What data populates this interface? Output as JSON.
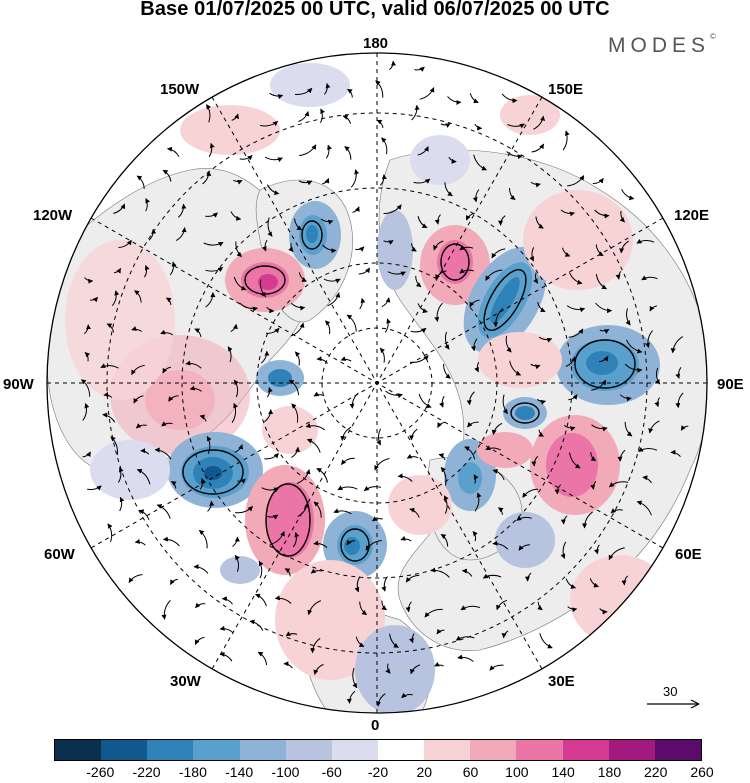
{
  "title": "Base 01/07/2025 00 UTC, valid 06/07/2025 00 UTC",
  "brand": {
    "name": "MODES",
    "mark": "©"
  },
  "meridian_labels": {
    "lon_180": "180",
    "lon_150w": "150W",
    "lon_150e": "150E",
    "lon_120w": "120W",
    "lon_120e": "120E",
    "lon_90w": "90W",
    "lon_90e": "90E",
    "lon_60w": "60W",
    "lon_60e": "60E",
    "lon_30w": "30W",
    "lon_30e": "30E",
    "lon_0": "0"
  },
  "wind_reference": {
    "value": "30"
  },
  "colorbar": {
    "ticks": [
      "-260",
      "-220",
      "-180",
      "-140",
      "-100",
      "-60",
      "-20",
      "20",
      "60",
      "100",
      "140",
      "180",
      "220",
      "260"
    ],
    "colors": [
      "#0b2f4f",
      "#11588f",
      "#2f82b8",
      "#5aa0cc",
      "#8fb3d6",
      "#b8c3e0",
      "#dcdcef",
      "#ffffff",
      "#f7d3d6",
      "#f2a9b8",
      "#ea75a6",
      "#d63a92",
      "#a31a7f",
      "#5c0b6b"
    ]
  },
  "colors": {
    "land_fill": "#ededed",
    "grid": "#000000",
    "wind_arrow": "#000000"
  }
}
